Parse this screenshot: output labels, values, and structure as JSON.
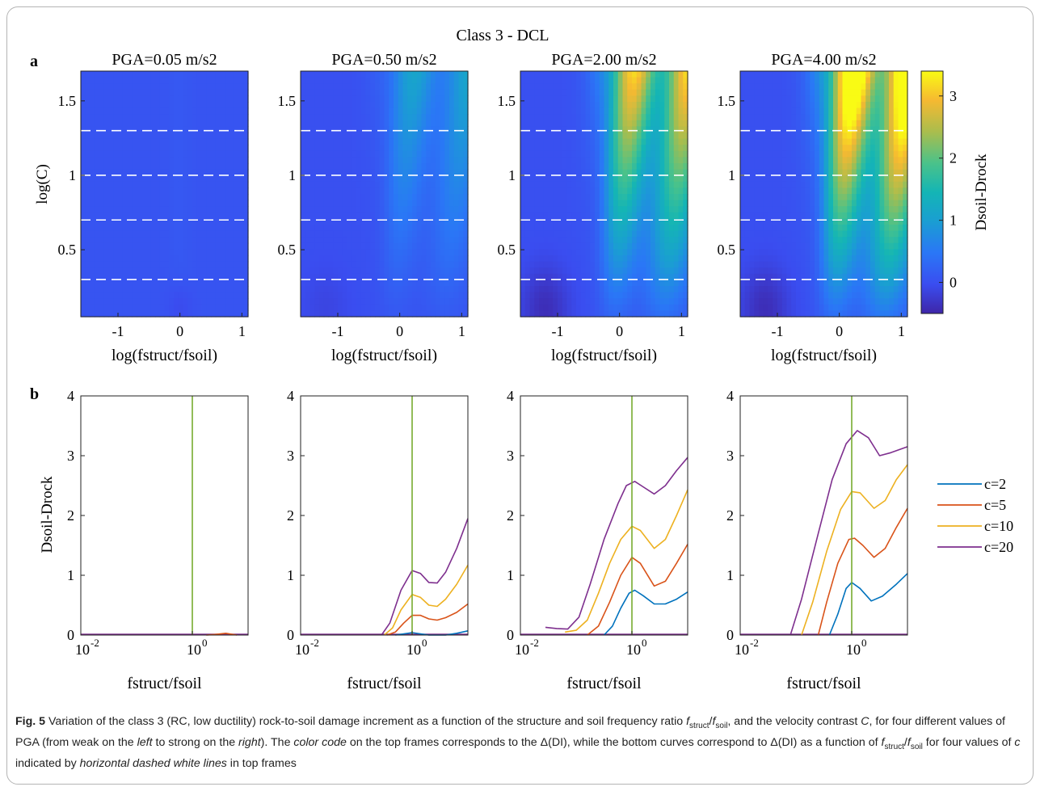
{
  "figure": {
    "title": "Class 3 - DCL",
    "panel_a_letter": "a",
    "panel_b_letter": "b",
    "colorbar_label": "Dsoil-Drock",
    "colorbar_ticks": [
      "3",
      "2",
      "1",
      "0"
    ],
    "top_ylabel": "log(C)",
    "top_xlabel": "log(fstruct/fsoil)",
    "top_yticks": [
      "1.5",
      "1",
      "0.5"
    ],
    "top_xticks": [
      "-1",
      "0",
      "1"
    ],
    "bottom_ylabel": "Dsoil-Drock",
    "bottom_xlabel": "fstruct/fsoil",
    "bottom_yticks": [
      "4",
      "3",
      "2",
      "1",
      "0"
    ],
    "bottom_xtick_left": "10",
    "bottom_xtick_left_exp": "-2",
    "bottom_xtick_mid": "10",
    "bottom_xtick_mid_exp": "0",
    "panel_titles": [
      "PGA=0.05 m/s2",
      "PGA=0.50 m/s2",
      "PGA=2.00 m/s2",
      "PGA=4.00 m/s2"
    ],
    "legend": [
      "c=2",
      "c=5",
      "c=10",
      "c=20"
    ],
    "colors": {
      "c2": "#0072bd",
      "c5": "#d95319",
      "c10": "#edb120",
      "c20": "#7e2f8e",
      "vline": "#77ac30",
      "dash": "#ffffff"
    }
  },
  "chart_data": [
    {
      "type": "heatmap",
      "title": "PGA=0.05 m/s2",
      "xlabel": "log(fstruct/fsoil)",
      "ylabel": "log(C)",
      "xlim": [
        -1.6,
        1.1
      ],
      "ylim": [
        0.05,
        1.7
      ],
      "dashed_lines_logC": [
        0.3,
        0.7,
        1.0,
        1.3
      ],
      "colorbar": {
        "label": "Dsoil-Drock",
        "range": [
          -0.5,
          3.4
        ],
        "colormap": "parula"
      }
    },
    {
      "type": "heatmap",
      "title": "PGA=0.50 m/s2",
      "xlabel": "log(fstruct/fsoil)",
      "ylabel": "log(C)",
      "xlim": [
        -1.6,
        1.1
      ],
      "ylim": [
        0.05,
        1.7
      ],
      "dashed_lines_logC": [
        0.3,
        0.7,
        1.0,
        1.3
      ]
    },
    {
      "type": "heatmap",
      "title": "PGA=2.00 m/s2",
      "xlabel": "log(fstruct/fsoil)",
      "ylabel": "log(C)",
      "xlim": [
        -1.6,
        1.1
      ],
      "ylim": [
        0.05,
        1.7
      ],
      "dashed_lines_logC": [
        0.3,
        0.7,
        1.0,
        1.3
      ]
    },
    {
      "type": "heatmap",
      "title": "PGA=4.00 m/s2",
      "xlabel": "log(fstruct/fsoil)",
      "ylabel": "log(C)",
      "xlim": [
        -1.6,
        1.1
      ],
      "ylim": [
        0.05,
        1.7
      ],
      "dashed_lines_logC": [
        0.3,
        0.7,
        1.0,
        1.3
      ]
    },
    {
      "type": "line",
      "xlabel": "fstruct/fsoil",
      "ylabel": "Dsoil-Drock",
      "xscale": "log",
      "xlim_log10": [
        -2,
        1
      ],
      "ylim": [
        0,
        4
      ],
      "vline_x": 1,
      "series": [
        {
          "name": "c=2",
          "points": []
        },
        {
          "name": "c=5",
          "points": [
            [
              0.25,
              0.0
            ],
            [
              0.4,
              0.01
            ],
            [
              0.6,
              0.03
            ],
            [
              0.8,
              0.0
            ]
          ]
        },
        {
          "name": "c=10",
          "points": []
        },
        {
          "name": "c=20",
          "points": []
        }
      ]
    },
    {
      "type": "line",
      "xlabel": "fstruct/fsoil",
      "ylabel": "Dsoil-Drock",
      "xscale": "log",
      "xlim_log10": [
        -2,
        1
      ],
      "ylim": [
        0,
        4
      ],
      "vline_x": 1,
      "series": [
        {
          "name": "c=2",
          "points": [
            [
              -0.3,
              0.0
            ],
            [
              -0.15,
              0.02
            ],
            [
              0.0,
              0.04
            ],
            [
              0.15,
              0.02
            ],
            [
              0.3,
              0.0
            ],
            [
              0.45,
              0.0
            ],
            [
              0.6,
              0.0
            ],
            [
              0.8,
              0.03
            ],
            [
              1.0,
              0.07
            ]
          ]
        },
        {
          "name": "c=5",
          "points": [
            [
              -0.45,
              0.0
            ],
            [
              -0.3,
              0.05
            ],
            [
              -0.15,
              0.2
            ],
            [
              0.0,
              0.33
            ],
            [
              0.15,
              0.33
            ],
            [
              0.3,
              0.27
            ],
            [
              0.45,
              0.25
            ],
            [
              0.6,
              0.29
            ],
            [
              0.8,
              0.38
            ],
            [
              1.0,
              0.52
            ]
          ]
        },
        {
          "name": "c=10",
          "points": [
            [
              -0.5,
              0.0
            ],
            [
              -0.35,
              0.12
            ],
            [
              -0.2,
              0.42
            ],
            [
              0.0,
              0.68
            ],
            [
              0.15,
              0.63
            ],
            [
              0.3,
              0.5
            ],
            [
              0.45,
              0.48
            ],
            [
              0.6,
              0.6
            ],
            [
              0.8,
              0.85
            ],
            [
              1.0,
              1.17
            ]
          ]
        },
        {
          "name": "c=20",
          "points": [
            [
              -0.55,
              0.0
            ],
            [
              -0.4,
              0.2
            ],
            [
              -0.2,
              0.75
            ],
            [
              0.0,
              1.08
            ],
            [
              0.15,
              1.03
            ],
            [
              0.3,
              0.88
            ],
            [
              0.45,
              0.87
            ],
            [
              0.6,
              1.05
            ],
            [
              0.8,
              1.45
            ],
            [
              1.0,
              1.95
            ]
          ]
        }
      ]
    },
    {
      "type": "line",
      "xlabel": "fstruct/fsoil",
      "ylabel": "Dsoil-Drock",
      "xscale": "log",
      "xlim_log10": [
        -2,
        1
      ],
      "ylim": [
        0,
        4
      ],
      "vline_x": 1,
      "series": [
        {
          "name": "c=2",
          "points": [
            [
              -0.5,
              0.0
            ],
            [
              -0.35,
              0.15
            ],
            [
              -0.2,
              0.45
            ],
            [
              -0.05,
              0.7
            ],
            [
              0.05,
              0.75
            ],
            [
              0.2,
              0.66
            ],
            [
              0.4,
              0.52
            ],
            [
              0.6,
              0.52
            ],
            [
              0.8,
              0.6
            ],
            [
              1.0,
              0.72
            ]
          ]
        },
        {
          "name": "c=5",
          "points": [
            [
              -0.8,
              0.0
            ],
            [
              -0.6,
              0.15
            ],
            [
              -0.4,
              0.55
            ],
            [
              -0.2,
              1.0
            ],
            [
              0.0,
              1.3
            ],
            [
              0.15,
              1.2
            ],
            [
              0.4,
              0.82
            ],
            [
              0.6,
              0.9
            ],
            [
              0.8,
              1.2
            ],
            [
              1.0,
              1.52
            ]
          ]
        },
        {
          "name": "c=10",
          "points": [
            [
              -1.2,
              0.05
            ],
            [
              -1.0,
              0.08
            ],
            [
              -0.8,
              0.25
            ],
            [
              -0.6,
              0.7
            ],
            [
              -0.4,
              1.2
            ],
            [
              -0.2,
              1.6
            ],
            [
              0.0,
              1.82
            ],
            [
              0.15,
              1.75
            ],
            [
              0.4,
              1.45
            ],
            [
              0.6,
              1.6
            ],
            [
              0.8,
              2.0
            ],
            [
              1.0,
              2.43
            ]
          ]
        },
        {
          "name": "c=20",
          "points": [
            [
              -1.55,
              0.13
            ],
            [
              -1.35,
              0.11
            ],
            [
              -1.15,
              0.1
            ],
            [
              -0.95,
              0.3
            ],
            [
              -0.75,
              0.85
            ],
            [
              -0.5,
              1.6
            ],
            [
              -0.25,
              2.2
            ],
            [
              -0.1,
              2.5
            ],
            [
              0.05,
              2.57
            ],
            [
              0.2,
              2.48
            ],
            [
              0.4,
              2.36
            ],
            [
              0.6,
              2.5
            ],
            [
              0.8,
              2.75
            ],
            [
              1.0,
              2.97
            ]
          ]
        }
      ]
    },
    {
      "type": "line",
      "xlabel": "fstruct/fsoil",
      "ylabel": "Dsoil-Drock",
      "xscale": "log",
      "xlim_log10": [
        -2,
        1
      ],
      "ylim": [
        0,
        4
      ],
      "vline_x": 1,
      "series": [
        {
          "name": "c=2",
          "points": [
            [
              -0.4,
              0.0
            ],
            [
              -0.25,
              0.35
            ],
            [
              -0.1,
              0.78
            ],
            [
              0.0,
              0.88
            ],
            [
              0.15,
              0.78
            ],
            [
              0.35,
              0.57
            ],
            [
              0.55,
              0.65
            ],
            [
              0.8,
              0.85
            ],
            [
              1.0,
              1.03
            ]
          ]
        },
        {
          "name": "c=5",
          "points": [
            [
              -0.6,
              0.0
            ],
            [
              -0.45,
              0.55
            ],
            [
              -0.25,
              1.2
            ],
            [
              -0.05,
              1.6
            ],
            [
              0.05,
              1.62
            ],
            [
              0.2,
              1.5
            ],
            [
              0.4,
              1.3
            ],
            [
              0.6,
              1.45
            ],
            [
              0.8,
              1.8
            ],
            [
              1.0,
              2.12
            ]
          ]
        },
        {
          "name": "c=10",
          "points": [
            [
              -0.9,
              0.0
            ],
            [
              -0.7,
              0.55
            ],
            [
              -0.45,
              1.4
            ],
            [
              -0.2,
              2.1
            ],
            [
              0.0,
              2.4
            ],
            [
              0.15,
              2.38
            ],
            [
              0.4,
              2.12
            ],
            [
              0.6,
              2.25
            ],
            [
              0.8,
              2.6
            ],
            [
              1.0,
              2.85
            ]
          ]
        },
        {
          "name": "c=20",
          "points": [
            [
              -1.1,
              0.0
            ],
            [
              -0.9,
              0.6
            ],
            [
              -0.6,
              1.7
            ],
            [
              -0.35,
              2.6
            ],
            [
              -0.1,
              3.2
            ],
            [
              0.1,
              3.42
            ],
            [
              0.3,
              3.3
            ],
            [
              0.5,
              3.0
            ],
            [
              0.7,
              3.05
            ],
            [
              1.0,
              3.15
            ]
          ]
        }
      ]
    }
  ],
  "caption": {
    "label": "Fig. 5",
    "t1": "Variation of the class 3 (RC, low ductility) rock-to-soil damage increment as a function of the structure and soil frequency ratio ",
    "f": "f",
    "s_struct": "struct",
    "slash": "/",
    "s_soil": "soil",
    "t2": ", and the velocity contrast ",
    "C": "C",
    "t3": ", for four different values of PGA (from weak on the ",
    "left": "left",
    "t4": " to strong on the ",
    "right": "right",
    "t5": "). The ",
    "colorcode": "color code",
    "t6": " on the top frames corresponds to the Δ(DI), while the bottom curves correspond to Δ(DI) as a function of ",
    "t7": " for four values of ",
    "c": "c",
    "t8": " indicated by ",
    "dashed": "horizontal dashed white lines",
    "t9": " in top frames"
  }
}
